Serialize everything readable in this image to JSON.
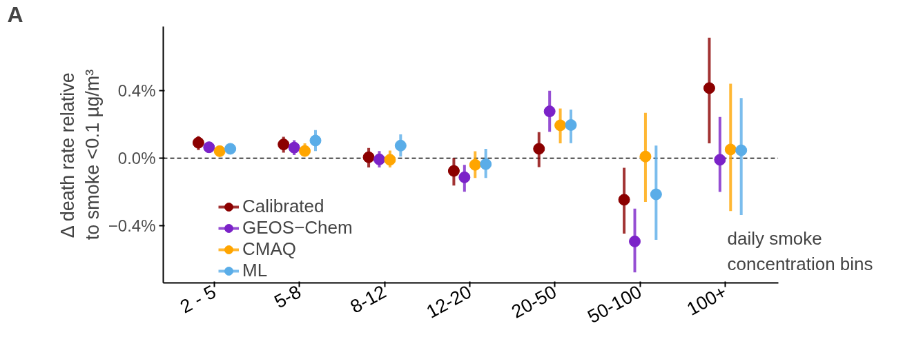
{
  "chart_data": {
    "type": "scatter",
    "ylabel": "Δ death rate relative\nto smoke <0.1 µg/m³",
    "xlabel": "daily smoke\nconcentration bins",
    "annotations": [
      "A"
    ],
    "categories": [
      "2 - 5",
      "5-8",
      "8-12",
      "12-20",
      "20-50",
      "50-100",
      "100+"
    ],
    "ylim": [
      -0.74,
      0.78
    ],
    "yticks": [
      {
        "value": -0.4,
        "label": "−0.4%"
      },
      {
        "value": 0.0,
        "label": "0.0%"
      },
      {
        "value": 0.4,
        "label": "0.4%"
      }
    ],
    "grid": false,
    "legend": "bottom left",
    "marker": "circle",
    "ref_lines": [
      {
        "axis": "y",
        "value": 0,
        "label": null,
        "color": "#000000",
        "line_style": "dashed"
      }
    ],
    "series": [
      {
        "name": "Calibrated",
        "color": "#8b0000",
        "values": [
          0.091,
          0.081,
          0.005,
          -0.076,
          0.055,
          -0.247,
          0.415
        ],
        "errors": [
          [
            0.048,
            0.13
          ],
          [
            0.032,
            0.126
          ],
          [
            -0.056,
            0.06
          ],
          [
            -0.163,
            0.001
          ],
          [
            -0.054,
            0.154
          ],
          [
            -0.448,
            -0.058
          ],
          [
            0.087,
            0.714
          ]
        ]
      },
      {
        "name": "GEOS−Chem",
        "color": "#7b22c8",
        "values": [
          0.064,
          0.062,
          -0.008,
          -0.114,
          0.277,
          -0.494,
          -0.01
        ],
        "errors": [
          [
            0.032,
            0.097
          ],
          [
            0.018,
            0.106
          ],
          [
            -0.056,
            0.041
          ],
          [
            -0.2,
            -0.04
          ],
          [
            0.156,
            0.399
          ],
          [
            -0.678,
            -0.3
          ],
          [
            -0.201,
            0.244
          ]
        ]
      },
      {
        "name": "CMAQ",
        "color": "#ffa500",
        "values": [
          0.041,
          0.042,
          -0.01,
          -0.04,
          0.194,
          0.009,
          0.051
        ],
        "errors": [
          null,
          [
            0.012,
            0.087
          ],
          [
            -0.056,
            0.045
          ],
          [
            -0.118,
            0.04
          ],
          [
            0.087,
            0.294
          ],
          [
            -0.26,
            0.268
          ],
          [
            -0.314,
            0.441
          ]
        ]
      },
      {
        "name": "ML",
        "color": "#5aade8",
        "values": [
          0.055,
          0.104,
          0.074,
          -0.036,
          0.196,
          -0.215,
          0.046
        ],
        "errors": [
          null,
          [
            0.041,
            0.166
          ],
          [
            0.009,
            0.141
          ],
          [
            -0.118,
            0.055
          ],
          [
            0.088,
            0.288
          ],
          [
            -0.485,
            0.074
          ],
          [
            -0.338,
            0.356
          ]
        ]
      }
    ]
  }
}
